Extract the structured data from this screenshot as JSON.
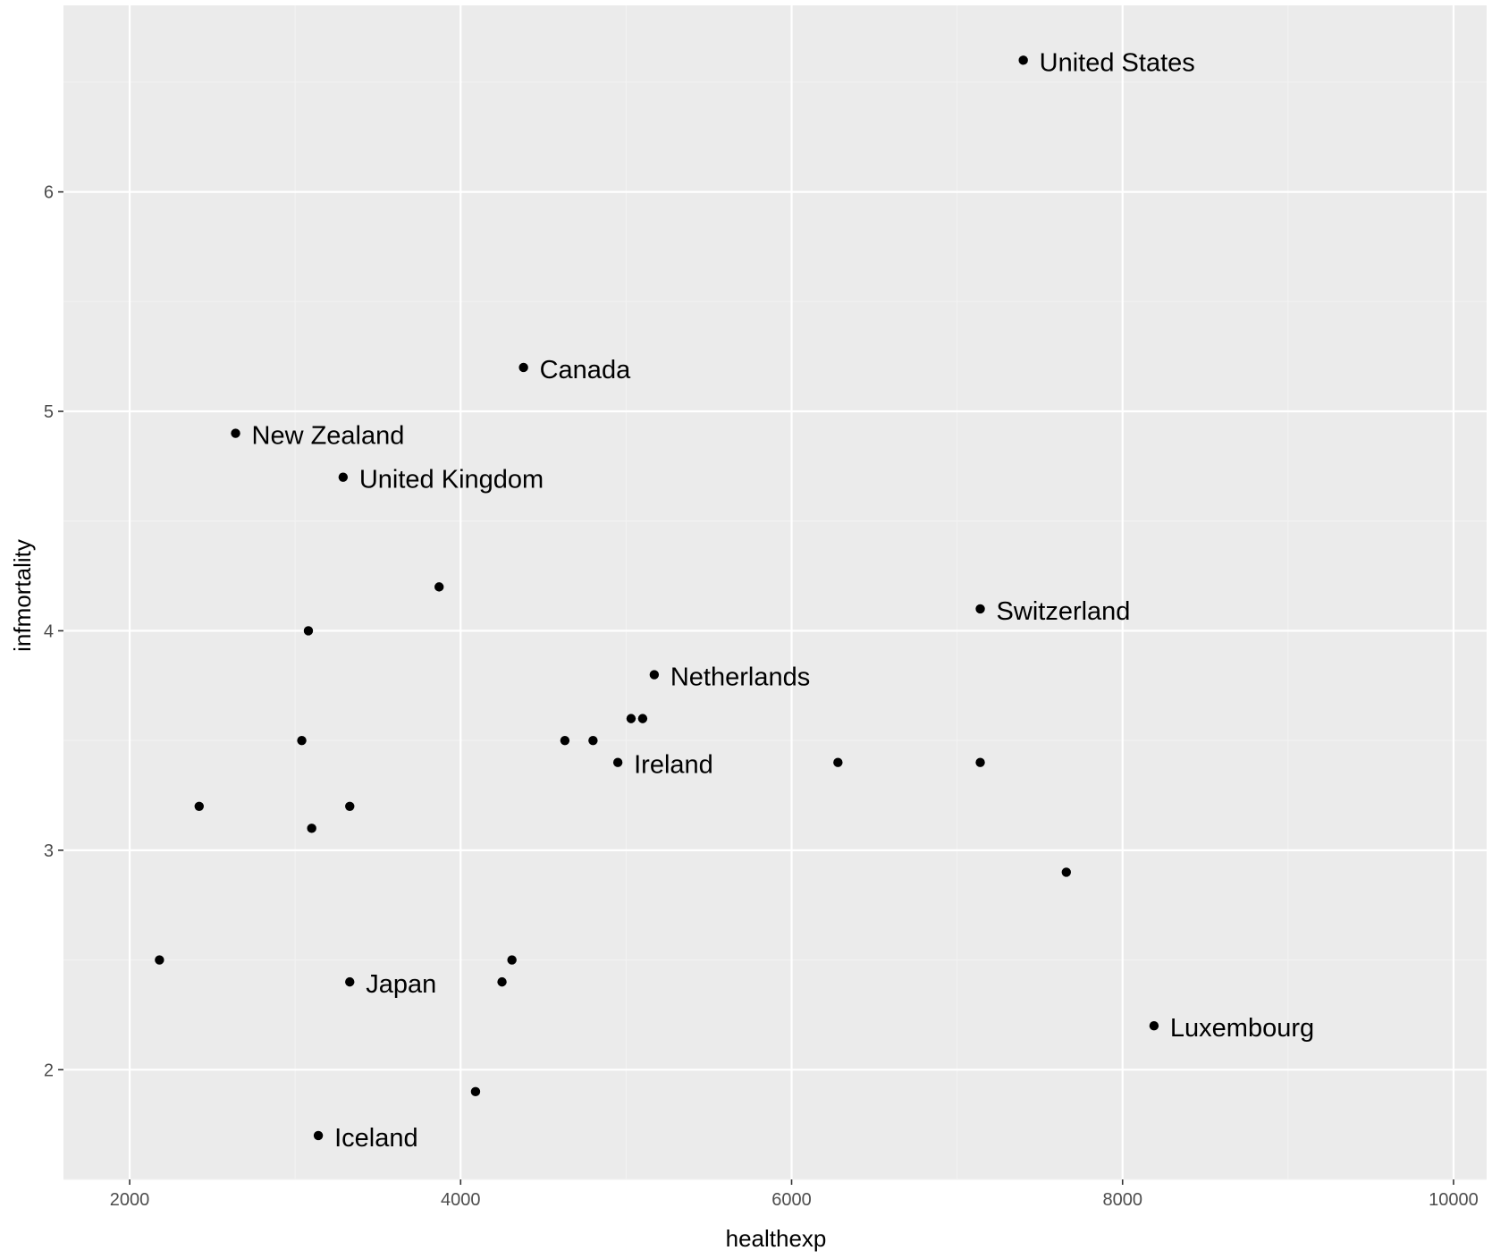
{
  "chart_data": {
    "type": "scatter",
    "xlabel": "healthexp",
    "ylabel": "infmortality",
    "xlim": [
      1600,
      10200
    ],
    "ylim": [
      1.5,
      6.85
    ],
    "x_ticks": [
      2000,
      4000,
      6000,
      8000,
      10000
    ],
    "x_tick_labels": [
      "2000",
      "4000",
      "6000",
      "8000",
      "10000"
    ],
    "y_ticks": [
      2,
      3,
      4,
      5,
      6
    ],
    "y_tick_labels": [
      "2",
      "3",
      "4",
      "5",
      "6"
    ],
    "grid": true,
    "colors": {
      "panel_background": "#ebebeb",
      "grid_major": "#ffffff",
      "grid_minor": "#f2f2f2",
      "point": "#000000",
      "tick_text": "#4d4d4d",
      "tick_mark": "#333333"
    },
    "points": [
      {
        "x": 7400,
        "y": 6.6,
        "label": "United States"
      },
      {
        "x": 4380,
        "y": 5.2,
        "label": "Canada"
      },
      {
        "x": 2640,
        "y": 4.9,
        "label": "New Zealand"
      },
      {
        "x": 3290,
        "y": 4.7,
        "label": "United Kingdom"
      },
      {
        "x": 3870,
        "y": 4.2
      },
      {
        "x": 7140,
        "y": 4.1,
        "label": "Switzerland"
      },
      {
        "x": 3080,
        "y": 4.0
      },
      {
        "x": 5170,
        "y": 3.8,
        "label": "Netherlands"
      },
      {
        "x": 5030,
        "y": 3.6
      },
      {
        "x": 5100,
        "y": 3.6
      },
      {
        "x": 3040,
        "y": 3.5
      },
      {
        "x": 4630,
        "y": 3.5
      },
      {
        "x": 4800,
        "y": 3.5
      },
      {
        "x": 4950,
        "y": 3.4,
        "label": "Ireland"
      },
      {
        "x": 6280,
        "y": 3.4
      },
      {
        "x": 7140,
        "y": 3.4
      },
      {
        "x": 2420,
        "y": 3.2
      },
      {
        "x": 3330,
        "y": 3.2
      },
      {
        "x": 3100,
        "y": 3.1
      },
      {
        "x": 7660,
        "y": 2.9
      },
      {
        "x": 2180,
        "y": 2.5
      },
      {
        "x": 4310,
        "y": 2.5
      },
      {
        "x": 3330,
        "y": 2.4,
        "label": "Japan"
      },
      {
        "x": 4250,
        "y": 2.4
      },
      {
        "x": 8190,
        "y": 2.2,
        "label": "Luxembourg"
      },
      {
        "x": 4090,
        "y": 1.9
      },
      {
        "x": 3140,
        "y": 1.7,
        "label": "Iceland"
      }
    ]
  }
}
